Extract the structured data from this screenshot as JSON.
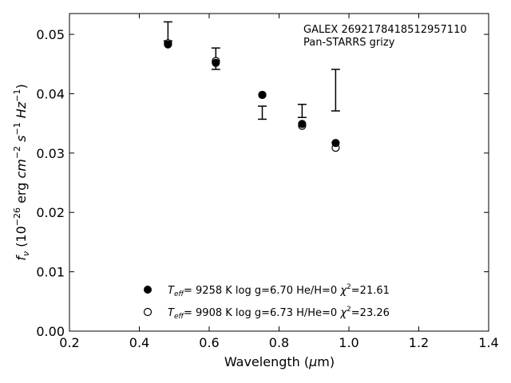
{
  "chart_data": {
    "type": "scatter",
    "title": "",
    "xlabel": "Wavelength (μm)",
    "ylabel": "f_ν (10^-26 erg cm^-2 s^-1 Hz^-1)",
    "xlim": [
      0.2,
      1.4
    ],
    "ylim": [
      0.0,
      0.0535
    ],
    "xticks": [
      0.2,
      0.4,
      0.6,
      0.8,
      1.0,
      1.2,
      1.4
    ],
    "xtick_labels": [
      "0.2",
      "0.4",
      "0.6",
      "0.8",
      "1.0",
      "1.2",
      "1.4"
    ],
    "yticks": [
      0.0,
      0.01,
      0.02,
      0.03,
      0.04,
      0.05
    ],
    "ytick_labels": [
      "0.00",
      "0.01",
      "0.02",
      "0.03",
      "0.04",
      "0.05"
    ],
    "grid": false,
    "annotations": [
      "GALEX 2692178418512957110",
      "Pan-STARRS grizy"
    ],
    "observed": {
      "marker": "errorbar",
      "x": [
        0.482,
        0.619,
        0.752,
        0.866,
        0.962
      ],
      "y": [
        0.0505,
        0.0459,
        0.0368,
        0.0371,
        0.0406
      ],
      "yerr": [
        0.0016,
        0.0018,
        0.0011,
        0.0011,
        0.0035
      ]
    },
    "series": [
      {
        "marker": "filled-circle",
        "legend": {
          "teff_value": "9258 K",
          "logg": "log g=6.70",
          "comp": "He/H=0",
          "chi2": "=21.61"
        },
        "x": [
          0.482,
          0.619,
          0.752,
          0.866,
          0.962
        ],
        "y": [
          0.0483,
          0.0452,
          0.0398,
          0.0349,
          0.0317
        ]
      },
      {
        "marker": "open-circle",
        "legend": {
          "teff_value": "9908 K",
          "logg": "log g=6.73",
          "comp": "H/He=0",
          "chi2": "=23.26"
        },
        "x": [
          0.482,
          0.619,
          0.752,
          0.866,
          0.962
        ],
        "y": [
          0.0485,
          0.0455,
          0.0398,
          0.0346,
          0.0309
        ]
      }
    ],
    "colors": {
      "ink": "#000000",
      "background": "#ffffff"
    }
  }
}
